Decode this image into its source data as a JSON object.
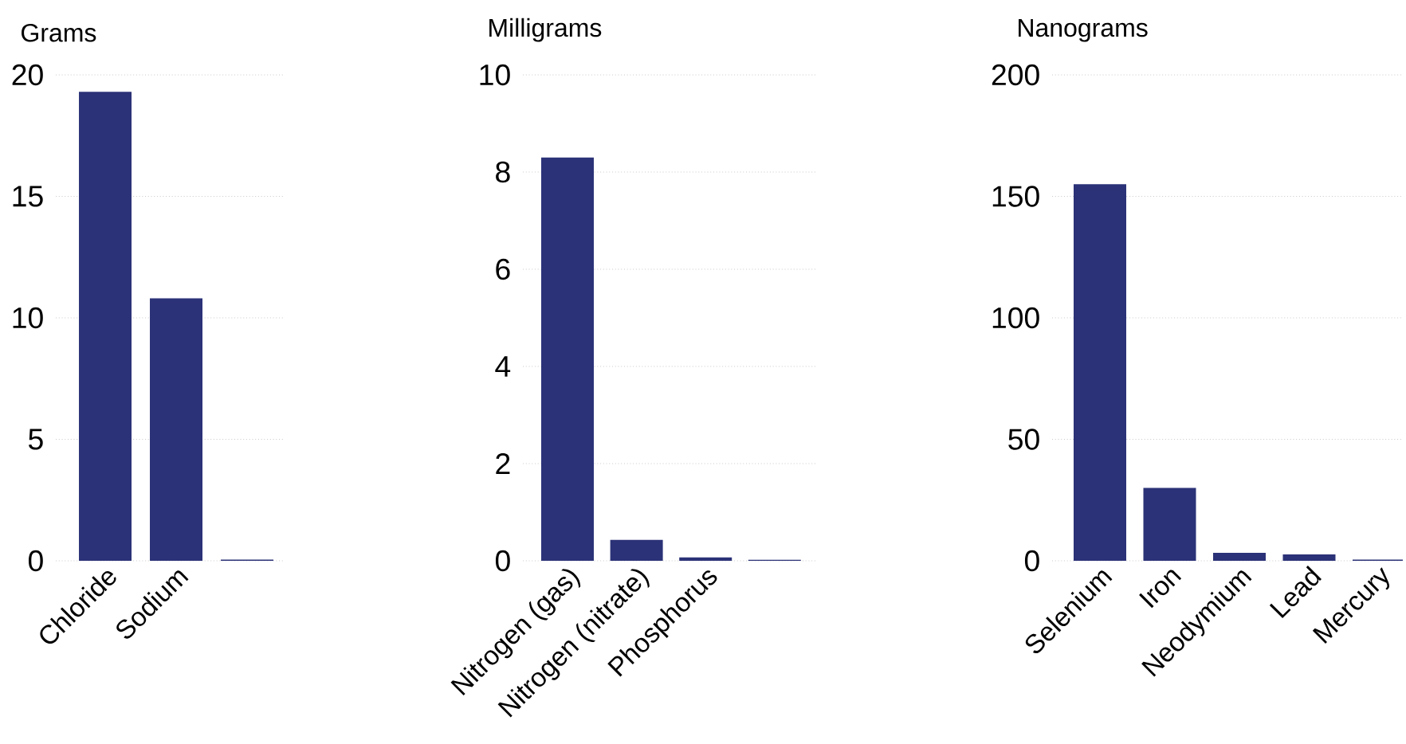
{
  "chart_data": [
    {
      "type": "bar",
      "title": "Grams",
      "categories": [
        "Chloride",
        "Sodium",
        null
      ],
      "values": [
        19.3,
        10.8,
        0.05
      ],
      "color": "#2b3277",
      "ylim": [
        0,
        20
      ],
      "yticks": [
        0,
        5,
        10,
        15,
        20
      ],
      "grid": "y"
    },
    {
      "type": "bar",
      "title": "Milligrams",
      "categories": [
        "Nitrogen (gas)",
        "Nitrogen (nitrate)",
        "Phosphorus",
        null
      ],
      "values": [
        8.3,
        0.43,
        0.07,
        0.02
      ],
      "color": "#2b3277",
      "ylim": [
        0,
        10
      ],
      "yticks": [
        0,
        2,
        4,
        6,
        8,
        10
      ],
      "grid": "y"
    },
    {
      "type": "bar",
      "title": "Nanograms",
      "categories": [
        "Selenium",
        "Iron",
        "Neodymium",
        "Lead",
        "Mercury"
      ],
      "values": [
        155,
        30,
        3.3,
        2.6,
        0.5
      ],
      "color": "#2b3277",
      "ylim": [
        0,
        200
      ],
      "yticks": [
        0,
        50,
        100,
        150,
        200
      ],
      "grid": "y"
    }
  ]
}
